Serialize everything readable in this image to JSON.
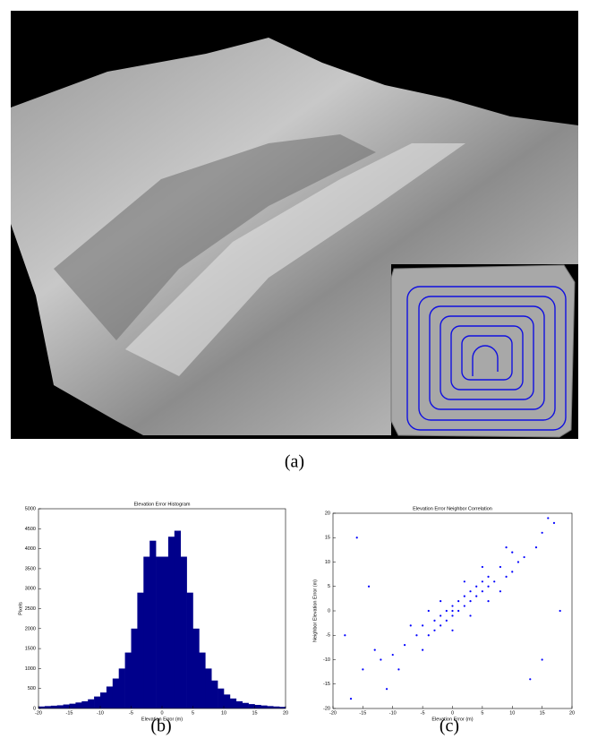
{
  "captions": [
    "(a)",
    "(b)",
    "(c)"
  ],
  "chart_data": [
    {
      "type": "histogram",
      "title": "Elevation Error Histogram",
      "x_label": "Elevation Error (m)",
      "y_label": "Pixels",
      "color": "#00008b",
      "bins": [
        -20,
        -19,
        -18,
        -17,
        -16,
        -15,
        -14,
        -13,
        -12,
        -11,
        -10,
        -9,
        -8,
        -7,
        -6,
        -5,
        -4,
        -3,
        -2,
        -1,
        0,
        1,
        2,
        3,
        4,
        5,
        6,
        7,
        8,
        9,
        10,
        11,
        12,
        13,
        14,
        15,
        16,
        17,
        18,
        19,
        20
      ],
      "values": [
        50,
        60,
        70,
        80,
        100,
        120,
        150,
        180,
        230,
        300,
        400,
        550,
        750,
        1000,
        1400,
        2000,
        2900,
        3800,
        4200,
        3800,
        3800,
        4300,
        4450,
        3800,
        2900,
        2000,
        1400,
        1000,
        700,
        500,
        350,
        250,
        180,
        140,
        110,
        90,
        75,
        60,
        50,
        40
      ],
      "xlim": [
        -20,
        20
      ],
      "xticks": [
        -20,
        -15,
        -10,
        -5,
        0,
        5,
        10,
        15,
        20
      ],
      "ylim": [
        0,
        5000
      ],
      "yticks": [
        0,
        500,
        1000,
        1500,
        2000,
        2500,
        3000,
        3500,
        4000,
        4500,
        5000
      ]
    },
    {
      "type": "scatter",
      "title": "Elevation Error Neighbor Correlation",
      "x_label": "Elevation Error (m)",
      "y_label": "Neighbor Elevation Error (m)",
      "color": "#0000ff",
      "x": [
        -8,
        -6,
        -5,
        -4,
        -3,
        -3,
        -2,
        -2,
        -1,
        -1,
        0,
        0,
        0,
        1,
        1,
        2,
        2,
        3,
        3,
        4,
        4,
        5,
        5,
        6,
        6,
        7,
        8,
        9,
        10,
        11,
        -10,
        -12,
        -15,
        -17,
        12,
        14,
        15,
        17,
        -7,
        -9,
        3,
        -2,
        6,
        0,
        -4,
        8,
        10,
        -5,
        2,
        5,
        -16,
        -18,
        -14,
        15,
        18,
        13,
        -11,
        16,
        -13,
        9
      ],
      "y": [
        -7,
        -5,
        -3,
        -5,
        -2,
        -4,
        -1,
        -3,
        0,
        -2,
        1,
        -1,
        0,
        2,
        0,
        3,
        1,
        2,
        4,
        3,
        5,
        6,
        4,
        5,
        7,
        6,
        9,
        7,
        8,
        10,
        -9,
        -10,
        -12,
        -18,
        11,
        13,
        16,
        18,
        -3,
        -12,
        -1,
        2,
        2,
        -4,
        0,
        4,
        12,
        -8,
        6,
        9,
        15,
        -5,
        5,
        -10,
        0,
        -14,
        -16,
        19,
        -8,
        13
      ],
      "xlim": [
        -20,
        20
      ],
      "xticks": [
        -20,
        -15,
        -10,
        -5,
        0,
        5,
        10,
        15,
        20
      ],
      "ylim": [
        -20,
        20
      ],
      "yticks": [
        -20,
        -15,
        -10,
        -5,
        0,
        5,
        10,
        15,
        20
      ]
    }
  ]
}
